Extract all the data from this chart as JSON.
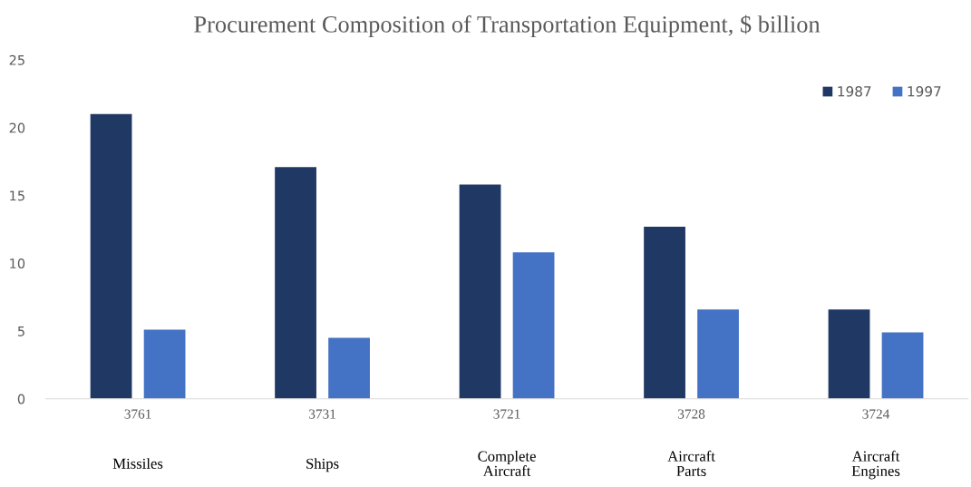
{
  "chart_data": {
    "type": "bar",
    "title": "Procurement Composition of Transportation Equipment, $ billion",
    "categories": [
      "3761",
      "3731",
      "3721",
      "3728",
      "3724"
    ],
    "series": [
      {
        "name": "1987",
        "color": "#203864",
        "values": [
          21.0,
          17.1,
          15.8,
          12.7,
          6.6
        ]
      },
      {
        "name": "1997",
        "color": "#4472c4",
        "values": [
          5.1,
          4.5,
          10.8,
          6.6,
          4.9
        ]
      }
    ],
    "annotations": [
      "Missiles",
      "Ships",
      "Complete\nAircraft",
      "Aircraft\nParts",
      "Aircraft\nEngines"
    ],
    "ylim": [
      0,
      25
    ],
    "yticks": [
      0,
      5,
      10,
      15,
      20,
      25
    ],
    "grid": false,
    "legend": "top right"
  }
}
